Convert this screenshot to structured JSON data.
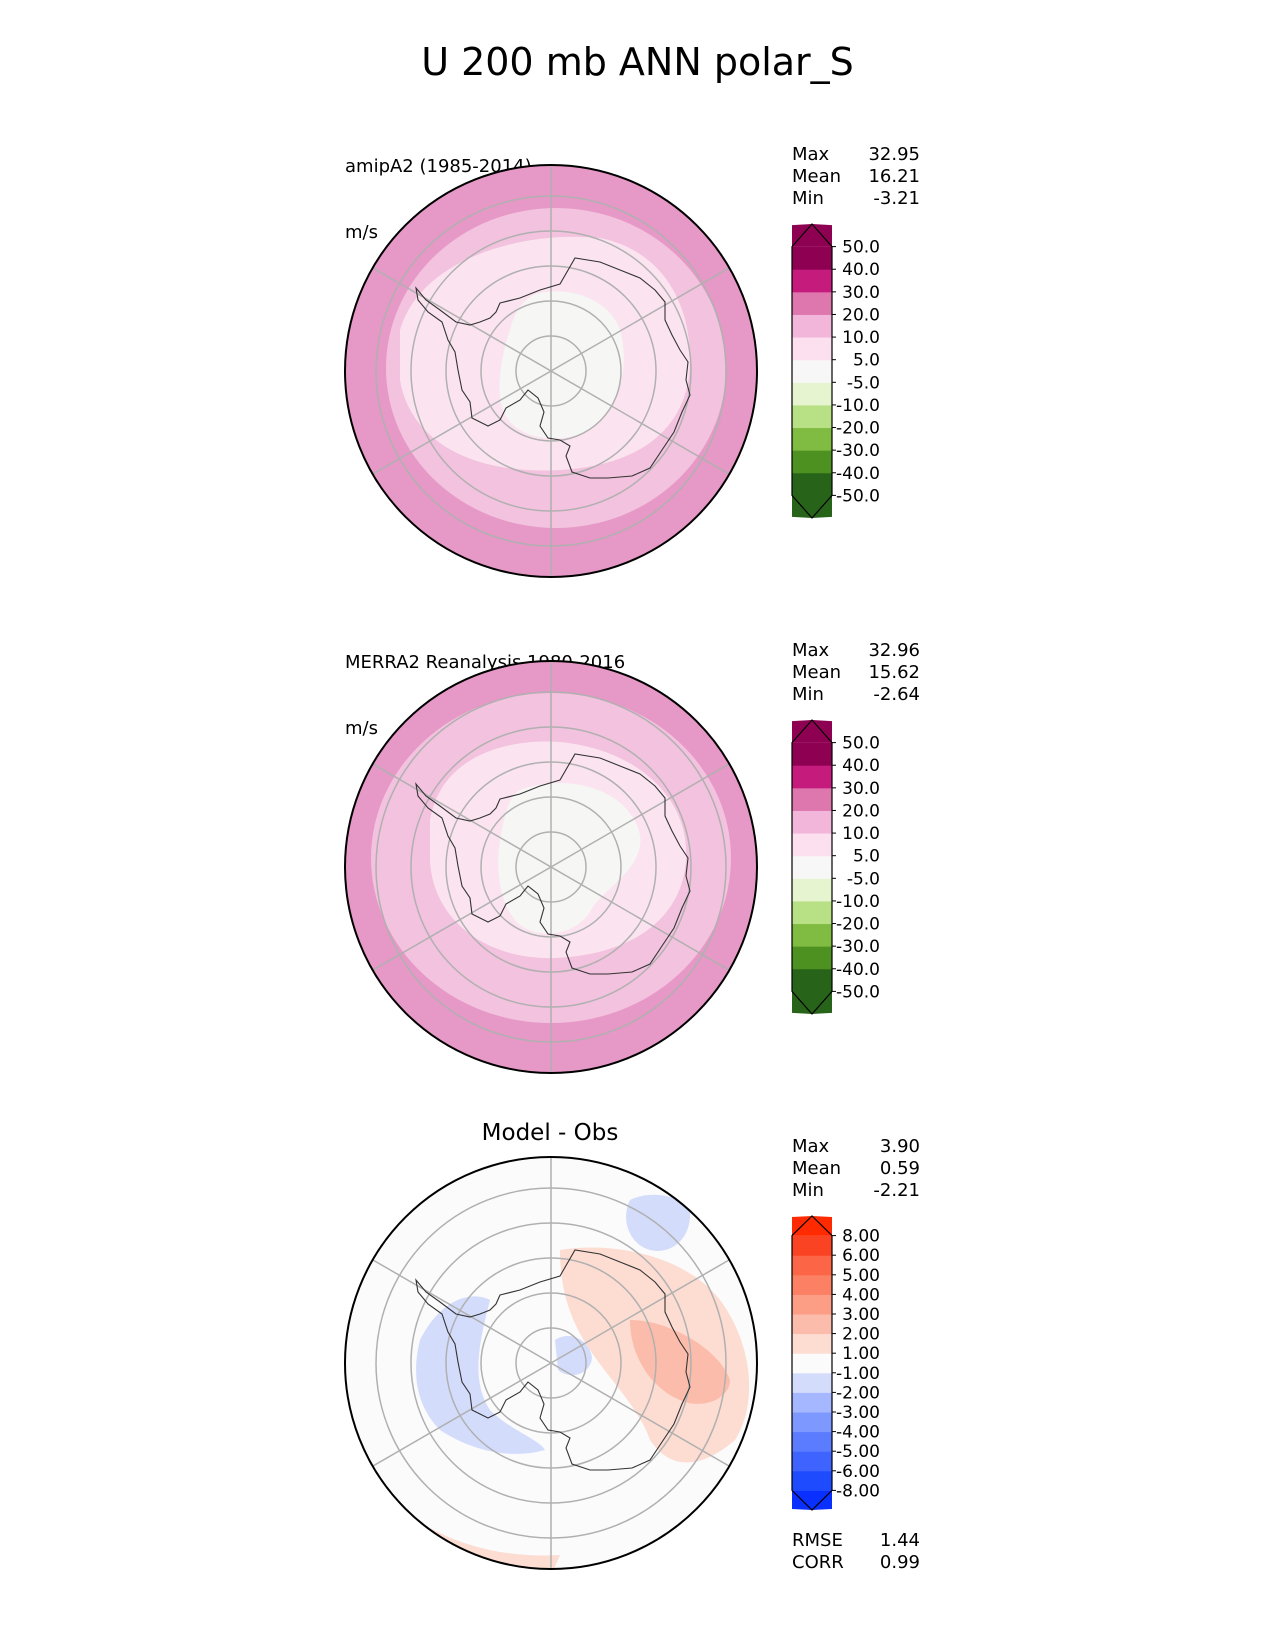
{
  "title": "U 200 mb ANN polar_S",
  "panels": [
    {
      "label_line1": "amipA2 (1985-2014)",
      "label_line2": "m/s",
      "center_title": "",
      "stats": [
        {
          "name": "Max",
          "value": "32.95"
        },
        {
          "name": "Mean",
          "value": "16.21"
        },
        {
          "name": "Min",
          "value": "-3.21"
        }
      ],
      "colorbar": {
        "colors": [
          "#276419",
          "#276419",
          "#4d9221",
          "#7fbc41",
          "#b8e186",
          "#e6f5d0",
          "#f7f7f7",
          "#fde0ef",
          "#f1b6da",
          "#de77ae",
          "#c51b7d",
          "#8e0152",
          "#8e0152"
        ],
        "ticks": [
          "-50.0",
          "-40.0",
          "-30.0",
          "-20.0",
          "-10.0",
          "-5.0",
          "5.0",
          "10.0",
          "20.0",
          "30.0",
          "40.0",
          "50.0"
        ]
      }
    },
    {
      "label_line1": "MERRA2 Reanalysis 1980-2016",
      "label_line2": "m/s",
      "center_title": "",
      "stats": [
        {
          "name": "Max",
          "value": "32.96"
        },
        {
          "name": "Mean",
          "value": "15.62"
        },
        {
          "name": "Min",
          "value": "-2.64"
        }
      ],
      "colorbar": {
        "colors": [
          "#276419",
          "#276419",
          "#4d9221",
          "#7fbc41",
          "#b8e186",
          "#e6f5d0",
          "#f7f7f7",
          "#fde0ef",
          "#f1b6da",
          "#de77ae",
          "#c51b7d",
          "#8e0152",
          "#8e0152"
        ],
        "ticks": [
          "-50.0",
          "-40.0",
          "-30.0",
          "-20.0",
          "-10.0",
          "-5.0",
          "5.0",
          "10.0",
          "20.0",
          "30.0",
          "40.0",
          "50.0"
        ]
      }
    },
    {
      "label_line1": "",
      "label_line2": "",
      "center_title": "Model - Obs",
      "stats": [
        {
          "name": "Max",
          "value": "3.90"
        },
        {
          "name": "Mean",
          "value": "0.59"
        },
        {
          "name": "Min",
          "value": "-2.21"
        }
      ],
      "extra_stats": [
        {
          "name": "RMSE",
          "value": "1.44"
        },
        {
          "name": "CORR",
          "value": "0.99"
        }
      ],
      "colorbar": {
        "colors": [
          "#0a30ff",
          "#1f4bff",
          "#3e63ff",
          "#5b7cff",
          "#7d98ff",
          "#a5b7ff",
          "#d4dcfc",
          "#fbfbfb",
          "#fddcd2",
          "#fcbcab",
          "#fc9e86",
          "#fc8064",
          "#fc6545",
          "#fa4322",
          "#ff2a00"
        ],
        "ticks": [
          "-8.00",
          "-6.00",
          "-5.00",
          "-4.00",
          "-3.00",
          "-2.00",
          "-1.00",
          "1.00",
          "2.00",
          "3.00",
          "4.00",
          "5.00",
          "6.00",
          "8.00"
        ]
      }
    }
  ],
  "chart_data": [
    {
      "type": "heatmap",
      "projection": "south polar stereographic",
      "title": "amipA2 (1985-2014)",
      "units": "m/s",
      "stats": {
        "max": 32.95,
        "mean": 16.21,
        "min": -3.21
      },
      "levels": [
        -50,
        -40,
        -30,
        -20,
        -10,
        -5,
        5,
        10,
        20,
        30,
        40,
        50
      ],
      "field_by_ring": [
        {
          "ring": "pole",
          "band": "-5.0 to 5.0"
        },
        {
          "ring": "antarctic interior",
          "band": "5.0 to 10.0"
        },
        {
          "ring": "antarctic coast",
          "band": "10.0 to 20.0"
        },
        {
          "ring": "southern ocean",
          "band": "20.0 to 30.0"
        }
      ]
    },
    {
      "type": "heatmap",
      "projection": "south polar stereographic",
      "title": "MERRA2 Reanalysis 1980-2016",
      "units": "m/s",
      "stats": {
        "max": 32.96,
        "mean": 15.62,
        "min": -2.64
      },
      "levels": [
        -50,
        -40,
        -30,
        -20,
        -10,
        -5,
        5,
        10,
        20,
        30,
        40,
        50
      ],
      "field_by_ring": [
        {
          "ring": "pole",
          "band": "-5.0 to 5.0"
        },
        {
          "ring": "antarctic interior",
          "band": "5.0 to 10.0"
        },
        {
          "ring": "antarctic coast",
          "band": "10.0 to 20.0"
        },
        {
          "ring": "southern ocean",
          "band": "20.0 to 30.0"
        }
      ]
    },
    {
      "type": "heatmap",
      "projection": "south polar stereographic",
      "title": "Model - Obs",
      "stats": {
        "max": 3.9,
        "mean": 0.59,
        "min": -2.21,
        "rmse": 1.44,
        "corr": 0.99
      },
      "levels": [
        -8,
        -6,
        -5,
        -4,
        -3,
        -2,
        -1,
        1,
        2,
        3,
        4,
        5,
        6,
        8
      ]
    }
  ]
}
